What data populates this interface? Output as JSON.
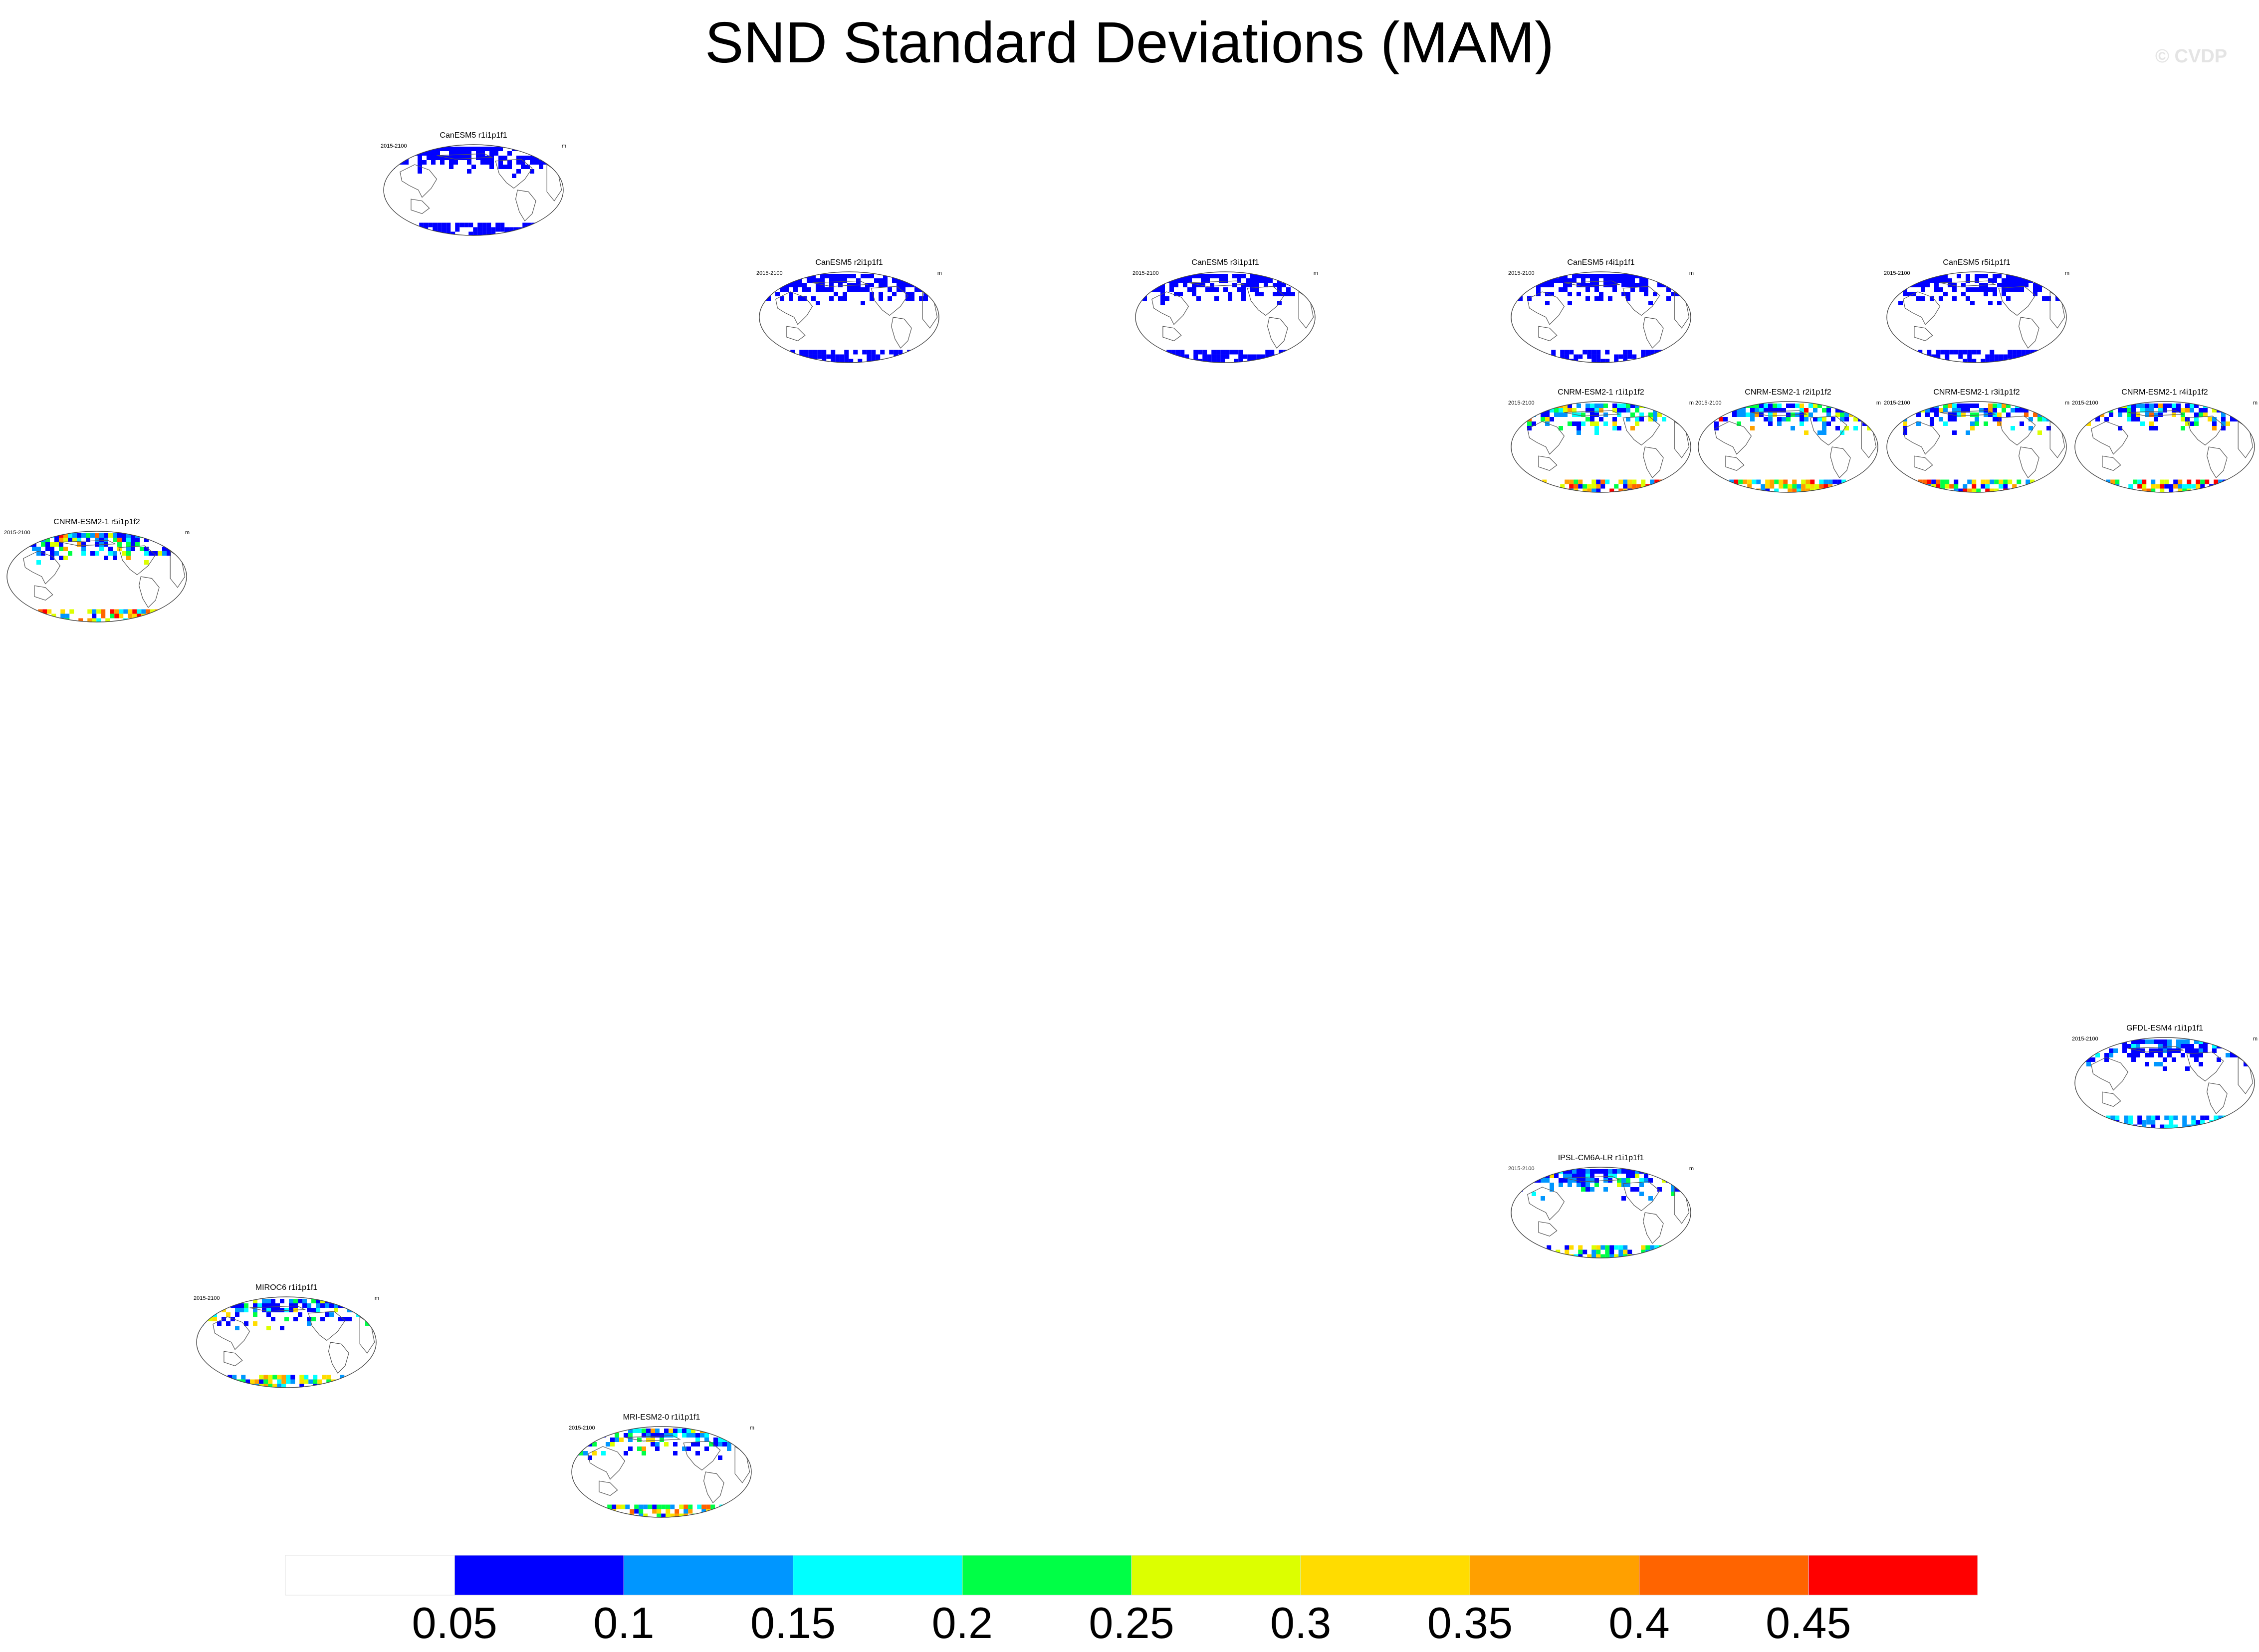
{
  "title": "SND Standard Deviations (MAM)",
  "watermark": "© CVDP",
  "chart_data": {
    "type": "heatmap",
    "title": "SND Standard Deviations (MAM)",
    "projection": "robinson-like world map, Pacific-centered",
    "panels": [
      {
        "name": "CanESM5 r1i1p1f1",
        "period": "2015-2100",
        "units": "m",
        "max_level": 0.05
      },
      {
        "name": "CanESM5 r2i1p1f1",
        "period": "2015-2100",
        "units": "m",
        "max_level": 0.05
      },
      {
        "name": "CanESM5 r3i1p1f1",
        "period": "2015-2100",
        "units": "m",
        "max_level": 0.05
      },
      {
        "name": "CanESM5 r4i1p1f1",
        "period": "2015-2100",
        "units": "m",
        "max_level": 0.05
      },
      {
        "name": "CanESM5 r5i1p1f1",
        "period": "2015-2100",
        "units": "m",
        "max_level": 0.05
      },
      {
        "name": "CNRM-ESM2-1 r1i1p1f2",
        "period": "2015-2100",
        "units": "m",
        "max_level": 0.45
      },
      {
        "name": "CNRM-ESM2-1 r2i1p1f2",
        "period": "2015-2100",
        "units": "m",
        "max_level": 0.45
      },
      {
        "name": "CNRM-ESM2-1 r3i1p1f2",
        "period": "2015-2100",
        "units": "m",
        "max_level": 0.45
      },
      {
        "name": "CNRM-ESM2-1 r4i1p1f2",
        "period": "2015-2100",
        "units": "m",
        "max_level": 0.45
      },
      {
        "name": "CNRM-ESM2-1 r5i1p1f2",
        "period": "2015-2100",
        "units": "m",
        "max_level": 0.45
      },
      {
        "name": "GFDL-ESM4 r1i1p1f1",
        "period": "2015-2100",
        "units": "m",
        "max_level": 0.15
      },
      {
        "name": "IPSL-CM6A-LR r1i1p1f1",
        "period": "2015-2100",
        "units": "m",
        "max_level": 0.3
      },
      {
        "name": "MIROC6 r1i1p1f1",
        "period": "2015-2100",
        "units": "m",
        "max_level": 0.35
      },
      {
        "name": "MRI-ESM2-0 r1i1p1f1",
        "period": "2015-2100",
        "units": "m",
        "max_level": 0.4
      }
    ],
    "colorbar": {
      "levels": [
        0.05,
        0.1,
        0.15,
        0.2,
        0.25,
        0.3,
        0.35,
        0.4,
        0.45
      ],
      "tick_labels": [
        "0.05",
        "0.1",
        "0.15",
        "0.2",
        "0.25",
        "0.3",
        "0.35",
        "0.4",
        "0.45"
      ],
      "colors": [
        "#ffffff",
        "#0000ff",
        "#0096ff",
        "#00ffff",
        "#00ff46",
        "#dcff00",
        "#ffdc00",
        "#ffa000",
        "#ff6400",
        "#ff0000"
      ]
    }
  }
}
